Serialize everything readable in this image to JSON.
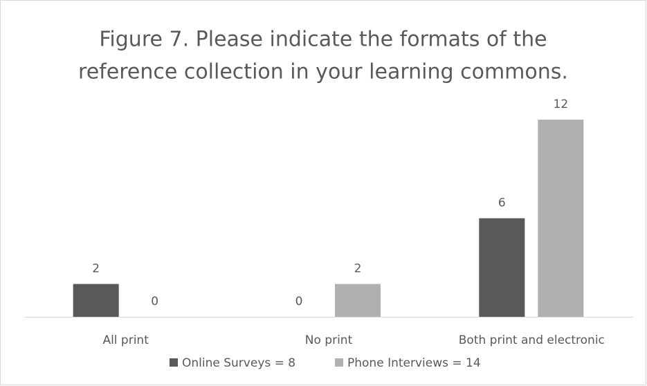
{
  "chart_data": {
    "type": "bar",
    "title": [
      "Figure 7. Please indicate the formats of the",
      "reference collection in your learning commons."
    ],
    "categories": [
      "All print",
      "No print",
      "Both print and electronic"
    ],
    "series": [
      {
        "name": "Online Surveys = 8",
        "color": "#595959",
        "values": [
          2,
          0,
          6
        ]
      },
      {
        "name": "Phone Interviews = 14",
        "color": "#b0b0b0",
        "values": [
          0,
          2,
          12
        ]
      }
    ]
  }
}
